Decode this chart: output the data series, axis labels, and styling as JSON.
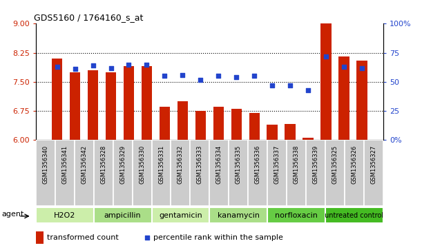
{
  "title": "GDS5160 / 1764160_s_at",
  "samples": [
    "GSM1356340",
    "GSM1356341",
    "GSM1356342",
    "GSM1356328",
    "GSM1356329",
    "GSM1356330",
    "GSM1356331",
    "GSM1356332",
    "GSM1356333",
    "GSM1356334",
    "GSM1356335",
    "GSM1356336",
    "GSM1356337",
    "GSM1356338",
    "GSM1356339",
    "GSM1356325",
    "GSM1356326",
    "GSM1356327"
  ],
  "bar_values": [
    8.1,
    7.75,
    7.8,
    7.75,
    7.9,
    7.9,
    6.85,
    7.0,
    6.75,
    6.85,
    6.8,
    6.7,
    6.4,
    6.42,
    6.05,
    9.0,
    8.15,
    8.05
  ],
  "dot_values": [
    63,
    61,
    64,
    62,
    65,
    65,
    55,
    56,
    52,
    55,
    54,
    55,
    47,
    47,
    43,
    72,
    63,
    62
  ],
  "groups": [
    {
      "label": "H2O2",
      "start": 0,
      "end": 3,
      "color": "#cceeaa"
    },
    {
      "label": "ampicillin",
      "start": 3,
      "end": 6,
      "color": "#aade88"
    },
    {
      "label": "gentamicin",
      "start": 6,
      "end": 9,
      "color": "#cceeaa"
    },
    {
      "label": "kanamycin",
      "start": 9,
      "end": 12,
      "color": "#aade88"
    },
    {
      "label": "norfloxacin",
      "start": 12,
      "end": 15,
      "color": "#66cc44"
    },
    {
      "label": "untreated control",
      "start": 15,
      "end": 18,
      "color": "#44bb22"
    }
  ],
  "bar_color": "#cc2200",
  "dot_color": "#2244cc",
  "ylim_left": [
    6,
    9
  ],
  "ylim_right": [
    0,
    100
  ],
  "yticks_left": [
    6,
    6.75,
    7.5,
    8.25,
    9
  ],
  "yticks_right": [
    0,
    25,
    50,
    75,
    100
  ],
  "ytick_labels_right": [
    "0%",
    "25",
    "50",
    "75",
    "100%"
  ],
  "hlines": [
    6.75,
    7.5,
    8.25
  ],
  "legend_bar": "transformed count",
  "legend_dot": "percentile rank within the sample",
  "agent_label": "agent",
  "bar_width": 0.6,
  "sample_box_color": "#cccccc",
  "title_fontsize": 9
}
